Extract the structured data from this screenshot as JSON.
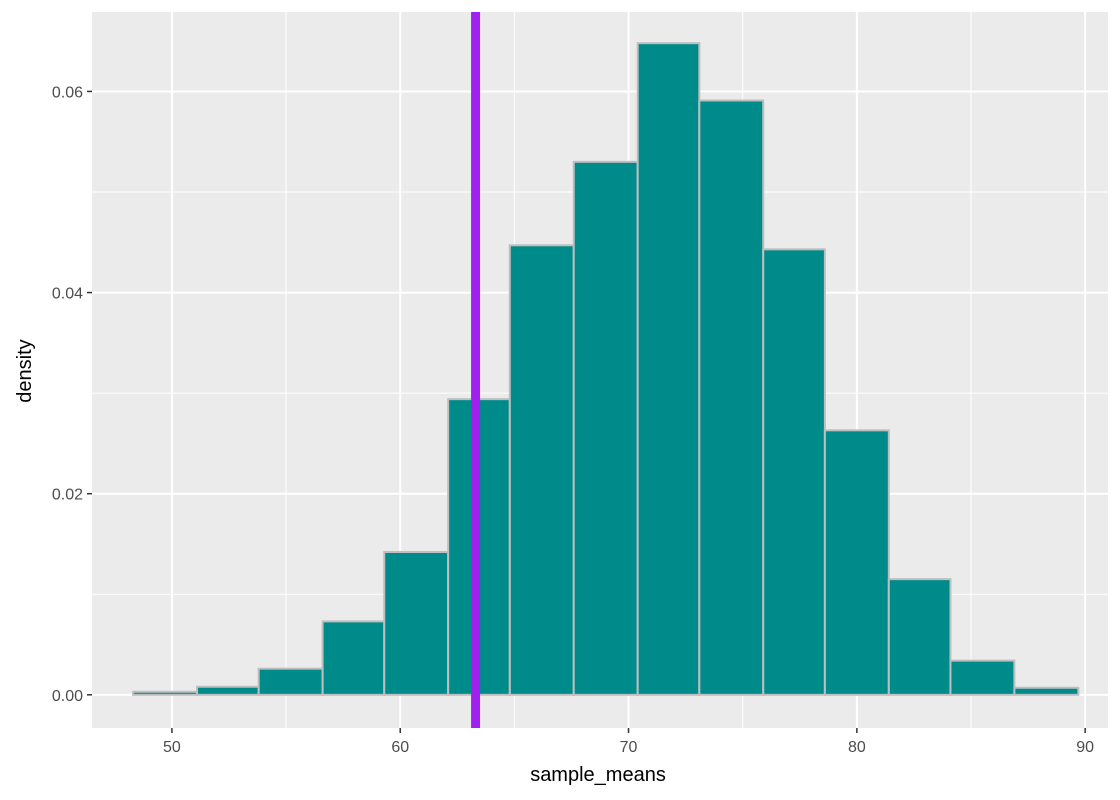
{
  "chart_data": {
    "type": "histogram",
    "title": "",
    "xlabel": "sample_means",
    "ylabel": "density",
    "xlim": [
      46.5,
      91.0
    ],
    "ylim": [
      -0.0033,
      0.0679
    ],
    "x_breaks": [
      50,
      60,
      70,
      80,
      90
    ],
    "x_tick_labels": [
      "50",
      "60",
      "70",
      "80",
      "90"
    ],
    "y_breaks": [
      0.0,
      0.02,
      0.04,
      0.06
    ],
    "y_tick_labels": [
      "0.00",
      "0.02",
      "0.04",
      "0.06"
    ],
    "bins": [
      {
        "x0": 48.3,
        "x1": 51.1,
        "density": 0.0003
      },
      {
        "x0": 51.1,
        "x1": 53.8,
        "density": 0.0008
      },
      {
        "x0": 53.8,
        "x1": 56.6,
        "density": 0.0026
      },
      {
        "x0": 56.6,
        "x1": 59.3,
        "density": 0.0073
      },
      {
        "x0": 59.3,
        "x1": 62.1,
        "density": 0.0142
      },
      {
        "x0": 62.1,
        "x1": 64.8,
        "density": 0.0294
      },
      {
        "x0": 64.8,
        "x1": 67.6,
        "density": 0.0447
      },
      {
        "x0": 67.6,
        "x1": 70.4,
        "density": 0.053
      },
      {
        "x0": 70.4,
        "x1": 73.1,
        "density": 0.0648
      },
      {
        "x0": 73.1,
        "x1": 75.9,
        "density": 0.0591
      },
      {
        "x0": 75.9,
        "x1": 78.6,
        "density": 0.0443
      },
      {
        "x0": 78.6,
        "x1": 81.4,
        "density": 0.0263
      },
      {
        "x0": 81.4,
        "x1": 84.1,
        "density": 0.0115
      },
      {
        "x0": 84.1,
        "x1": 86.9,
        "density": 0.0034
      },
      {
        "x0": 86.9,
        "x1": 89.7,
        "density": 0.0007
      }
    ],
    "vline": {
      "x": 63.3,
      "color": "#a020f0"
    },
    "bar_fill": "#008b8b",
    "bar_outline": "#bebebe",
    "panel_background": "#ebebeb",
    "grid": true,
    "gridline_color": "#ffffff"
  }
}
